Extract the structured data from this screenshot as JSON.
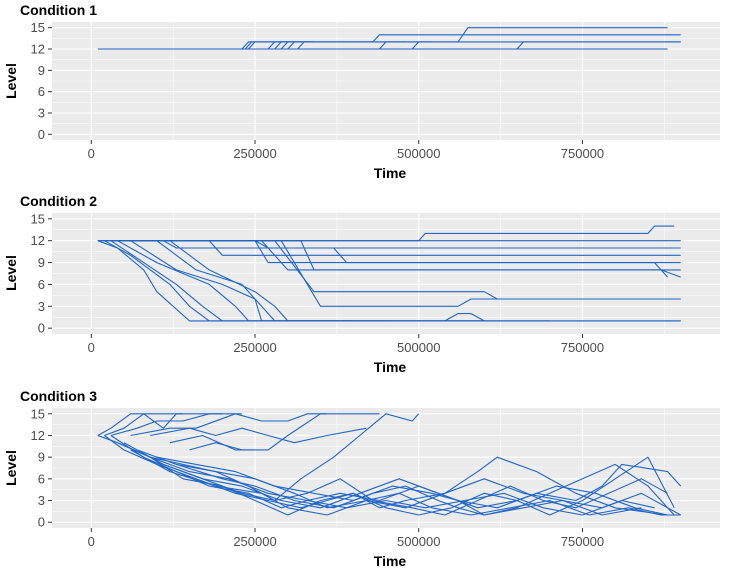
{
  "chart_data": [
    {
      "type": "line",
      "title": "Condition 1",
      "xlabel": "Time",
      "ylabel": "Level",
      "xlim": [
        -60000,
        960000
      ],
      "ylim": [
        -0.8,
        15.8
      ],
      "xticks": [
        0,
        250000,
        500000,
        750000
      ],
      "xtick_labels": [
        "0",
        "250000",
        "500000",
        "750000"
      ],
      "yticks": [
        0,
        3,
        6,
        9,
        12,
        15
      ],
      "ytick_labels": [
        "0",
        "3",
        "6",
        "9",
        "12",
        "15"
      ],
      "grid": true,
      "series": [
        {
          "x": [
            10000,
            880000
          ],
          "y": [
            12,
            12
          ]
        },
        {
          "x": [
            230000,
            240000,
            900000
          ],
          "y": [
            12,
            13,
            13
          ]
        },
        {
          "x": [
            235000,
            245000,
            430000,
            440000,
            900000
          ],
          "y": [
            12,
            13,
            13,
            14,
            14
          ]
        },
        {
          "x": [
            240000,
            250000,
            560000,
            575000,
            880000
          ],
          "y": [
            12,
            13,
            13,
            15,
            15
          ]
        },
        {
          "x": [
            270000,
            280000,
            300000
          ],
          "y": [
            12,
            13,
            13
          ]
        },
        {
          "x": [
            280000,
            290000,
            310000
          ],
          "y": [
            12,
            13,
            13
          ]
        },
        {
          "x": [
            290000,
            300000,
            320000
          ],
          "y": [
            12,
            13,
            13
          ]
        },
        {
          "x": [
            300000,
            310000,
            330000
          ],
          "y": [
            12,
            13,
            13
          ]
        },
        {
          "x": [
            315000,
            325000,
            340000
          ],
          "y": [
            12,
            13,
            13
          ]
        },
        {
          "x": [
            440000,
            450000,
            480000
          ],
          "y": [
            12,
            13,
            13
          ]
        },
        {
          "x": [
            490000,
            500000,
            520000
          ],
          "y": [
            12,
            13,
            13
          ]
        },
        {
          "x": [
            650000,
            660000,
            900000
          ],
          "y": [
            12,
            13,
            13
          ]
        }
      ]
    },
    {
      "type": "line",
      "title": "Condition 2",
      "xlabel": "Time",
      "ylabel": "Level",
      "xlim": [
        -60000,
        960000
      ],
      "ylim": [
        -0.8,
        15.8
      ],
      "xticks": [
        0,
        250000,
        500000,
        750000
      ],
      "xtick_labels": [
        "0",
        "250000",
        "500000",
        "750000"
      ],
      "yticks": [
        0,
        3,
        6,
        9,
        12,
        15
      ],
      "ytick_labels": [
        "0",
        "3",
        "6",
        "9",
        "12",
        "15"
      ],
      "grid": true,
      "series": [
        {
          "x": [
            10000,
            900000
          ],
          "y": [
            12,
            12
          ]
        },
        {
          "x": [
            10000,
            350000,
            360000,
            500000,
            510000,
            610000,
            630000,
            640000,
            850000,
            860000,
            890000
          ],
          "y": [
            12,
            12,
            12,
            12,
            13,
            13,
            13,
            13,
            13,
            14,
            14
          ]
        },
        {
          "x": [
            20000,
            110000,
            130000,
            900000
          ],
          "y": [
            12,
            12,
            11,
            11
          ]
        },
        {
          "x": [
            40000,
            180000,
            200000,
            900000
          ],
          "y": [
            12,
            12,
            10,
            10
          ]
        },
        {
          "x": [
            60000,
            250000,
            270000,
            370000,
            390000,
            900000
          ],
          "y": [
            12,
            12,
            11,
            11,
            9,
            9
          ]
        },
        {
          "x": [
            80000,
            320000,
            340000,
            900000
          ],
          "y": [
            12,
            12,
            8,
            8
          ]
        },
        {
          "x": [
            100000,
            250000,
            270000,
            860000,
            880000
          ],
          "y": [
            12,
            12,
            9,
            9,
            7
          ]
        },
        {
          "x": [
            120000,
            260000,
            300000,
            850000,
            870000,
            900000
          ],
          "y": [
            12,
            12,
            8,
            8,
            8,
            7
          ]
        },
        {
          "x": [
            140000,
            280000,
            340000,
            600000,
            620000,
            900000
          ],
          "y": [
            12,
            12,
            5,
            5,
            4,
            4
          ]
        },
        {
          "x": [
            160000,
            290000,
            350000,
            560000,
            580000,
            900000
          ],
          "y": [
            12,
            12,
            3,
            3,
            4,
            4
          ]
        },
        {
          "x": [
            10000,
            40000,
            80000,
            100000,
            150000,
            900000
          ],
          "y": [
            12,
            11,
            8,
            5,
            1,
            1
          ]
        },
        {
          "x": [
            20000,
            60000,
            120000,
            150000,
            180000,
            900000
          ],
          "y": [
            12,
            10,
            6,
            3,
            1,
            1
          ]
        },
        {
          "x": [
            30000,
            80000,
            130000,
            170000,
            200000,
            600000
          ],
          "y": [
            12,
            9,
            6,
            3,
            1,
            1
          ]
        },
        {
          "x": [
            40000,
            100000,
            180000,
            220000,
            240000,
            700000
          ],
          "y": [
            12,
            9,
            6,
            3,
            1,
            1
          ]
        },
        {
          "x": [
            60000,
            130000,
            200000,
            250000,
            260000,
            540000,
            560000,
            580000,
            600000
          ],
          "y": [
            12,
            8,
            6,
            4,
            1,
            1,
            2,
            2,
            1
          ]
        },
        {
          "x": [
            100000,
            160000,
            230000,
            260000,
            280000,
            450000
          ],
          "y": [
            12,
            8,
            6,
            3,
            1,
            1
          ]
        },
        {
          "x": [
            120000,
            180000,
            250000,
            280000,
            300000,
            400000
          ],
          "y": [
            12,
            8,
            5,
            3,
            1,
            1
          ]
        }
      ]
    },
    {
      "type": "line",
      "title": "Condition 3",
      "xlabel": "Time",
      "ylabel": "Level",
      "xlim": [
        -60000,
        960000
      ],
      "ylim": [
        -0.8,
        15.8
      ],
      "xticks": [
        0,
        250000,
        500000,
        750000
      ],
      "xtick_labels": [
        "0",
        "250000",
        "500000",
        "750000"
      ],
      "yticks": [
        0,
        3,
        6,
        9,
        12,
        15
      ],
      "ytick_labels": [
        "0",
        "3",
        "6",
        "9",
        "12",
        "15"
      ],
      "grid": true,
      "series": [
        {
          "x": [
            10000,
            30000,
            60000,
            140000
          ],
          "y": [
            12,
            13,
            15,
            15
          ]
        },
        {
          "x": [
            20000,
            50000,
            80000,
            110000,
            130000,
            200000
          ],
          "y": [
            12,
            13,
            15,
            13,
            15,
            15
          ]
        },
        {
          "x": [
            30000,
            70000,
            100000,
            140000,
            180000,
            230000
          ],
          "y": [
            12,
            13,
            14,
            14,
            15,
            15
          ]
        },
        {
          "x": [
            60000,
            120000,
            160000,
            220000,
            260000,
            300000,
            330000,
            360000
          ],
          "y": [
            12,
            13,
            13,
            15,
            14,
            14,
            15,
            15
          ]
        },
        {
          "x": [
            90000,
            150000,
            190000,
            230000,
            270000,
            310000,
            360000,
            420000
          ],
          "y": [
            12,
            13,
            12,
            13,
            12,
            11,
            12,
            13
          ]
        },
        {
          "x": [
            120000,
            170000,
            220000,
            250000
          ],
          "y": [
            11,
            12,
            10,
            10
          ]
        },
        {
          "x": [
            150000,
            190000,
            230000,
            270000,
            300000,
            350000,
            380000,
            440000
          ],
          "y": [
            10,
            11,
            10,
            10,
            12,
            15,
            15,
            15
          ]
        },
        {
          "x": [
            10000,
            40000,
            90000,
            140000,
            190000,
            240000,
            280000,
            320000,
            370000,
            410000,
            450000,
            490000,
            500000
          ],
          "y": [
            12,
            11,
            9,
            8,
            7,
            5,
            3,
            6,
            9,
            12,
            15,
            14,
            15
          ]
        },
        {
          "x": [
            20000,
            50000,
            100000,
            160000,
            220000,
            270000,
            320000,
            360000,
            400000,
            440000,
            480000,
            540000,
            590000,
            620000,
            680000,
            740000,
            800000,
            880000
          ],
          "y": [
            12,
            10,
            8,
            6,
            4,
            3,
            2,
            3,
            4,
            2,
            3,
            4,
            7,
            9,
            7,
            4,
            2,
            1
          ]
        },
        {
          "x": [
            30000,
            80000,
            130000,
            180000,
            240000,
            290000,
            330000,
            380000,
            440000,
            500000,
            560000,
            620000,
            680000,
            740000,
            780000,
            810000,
            880000,
            900000
          ],
          "y": [
            12,
            9,
            7,
            5,
            4,
            2,
            3,
            4,
            3,
            5,
            3,
            2,
            4,
            3,
            5,
            8,
            7,
            5
          ]
        },
        {
          "x": [
            40000,
            90000,
            140000,
            200000,
            250000,
            300000,
            350000,
            400000,
            450000,
            500000,
            550000,
            600000,
            650000,
            700000,
            750000,
            800000,
            850000,
            890000
          ],
          "y": [
            11,
            9,
            6,
            5,
            3,
            1,
            3,
            4,
            2,
            1,
            2,
            4,
            3,
            1,
            3,
            6,
            9,
            2
          ]
        },
        {
          "x": [
            50000,
            110000,
            170000,
            230000,
            280000,
            330000,
            380000,
            430000,
            490000,
            540000,
            590000,
            640000,
            690000,
            740000,
            790000,
            840000,
            880000
          ],
          "y": [
            11,
            8,
            6,
            4,
            3,
            4,
            6,
            3,
            2,
            1,
            3,
            5,
            3,
            2,
            4,
            6,
            4
          ]
        },
        {
          "x": [
            60000,
            120000,
            190000,
            260000,
            300000,
            360000,
            420000,
            470000,
            520000,
            580000,
            640000,
            700000,
            760000,
            820000,
            870000,
            900000
          ],
          "y": [
            10,
            7,
            5,
            4,
            2,
            1,
            3,
            4,
            2,
            1,
            2,
            3,
            1,
            2,
            1,
            1
          ]
        },
        {
          "x": [
            70000,
            130000,
            200000,
            250000,
            310000,
            370000,
            430000,
            480000,
            530000,
            560000,
            600000,
            650000,
            700000,
            750000,
            800000,
            850000,
            890000
          ],
          "y": [
            10,
            8,
            6,
            5,
            3,
            2,
            4,
            5,
            3,
            2,
            1,
            2,
            4,
            6,
            8,
            5,
            1
          ]
        },
        {
          "x": [
            90000,
            150000,
            210000,
            270000,
            330000,
            390000,
            450000,
            510000,
            570000,
            630000,
            690000,
            750000,
            810000,
            860000
          ],
          "y": [
            9,
            7,
            6,
            4,
            3,
            2,
            3,
            2,
            3,
            4,
            2,
            1,
            3,
            2
          ]
        },
        {
          "x": [
            100000,
            160000,
            220000,
            280000,
            340000,
            400000,
            460000,
            520000,
            560000,
            600000,
            660000,
            720000,
            780000,
            840000
          ],
          "y": [
            9,
            8,
            7,
            5,
            4,
            3,
            5,
            4,
            3,
            1,
            2,
            3,
            1,
            2
          ]
        },
        {
          "x": [
            110000,
            170000,
            230000,
            290000,
            350000,
            410000,
            470000,
            530000,
            590000,
            650000,
            710000,
            770000,
            830000,
            880000
          ],
          "y": [
            8,
            6,
            5,
            3,
            2,
            4,
            6,
            4,
            2,
            3,
            5,
            4,
            2,
            1
          ]
        },
        {
          "x": [
            130000,
            190000,
            250000,
            310000,
            360000,
            420000,
            480000,
            540000,
            600000,
            660000,
            720000,
            780000,
            840000,
            900000
          ],
          "y": [
            8,
            7,
            6,
            4,
            2,
            3,
            2,
            4,
            6,
            4,
            3,
            2,
            4,
            1
          ]
        }
      ]
    }
  ]
}
